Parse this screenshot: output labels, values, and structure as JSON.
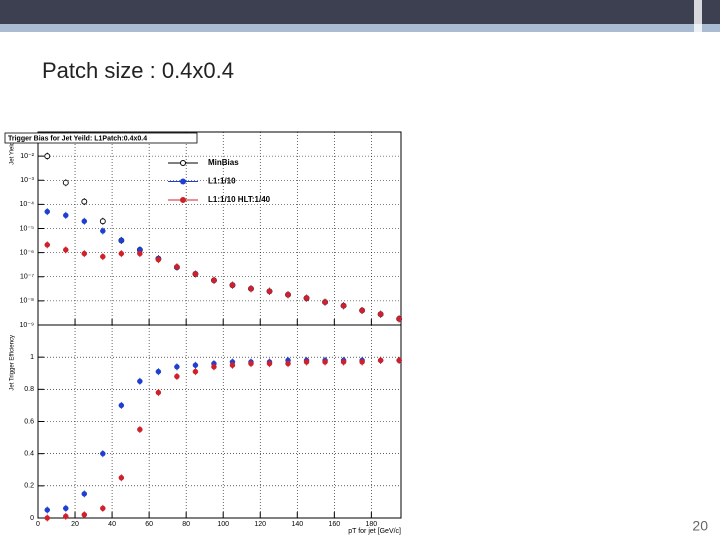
{
  "slide": {
    "title": "Patch size : 0.4x0.4",
    "page_number": 20
  },
  "chart_data": [
    {
      "type": "scatter",
      "title": "Trigger Bias for Jet Yeild: L1Patch:0.4x0.4",
      "y_label": "Jet Yield",
      "x": [
        5,
        15,
        25,
        35,
        45,
        55,
        65,
        75,
        85,
        95,
        105,
        115,
        125,
        135,
        145,
        155,
        165,
        175,
        185,
        195
      ],
      "xlim": [
        0,
        196
      ],
      "ylim": [
        1e-09,
        0.1
      ],
      "log_y": true,
      "grid": true,
      "legend": "top-center",
      "yticks": [
        {
          "value": 0.01,
          "label": "10⁻²"
        },
        {
          "value": 0.001,
          "label": "10⁻³"
        },
        {
          "value": 0.0001,
          "label": "10⁻⁴"
        },
        {
          "value": 1e-05,
          "label": "10⁻⁵"
        },
        {
          "value": 1e-06,
          "label": "10⁻⁶"
        },
        {
          "value": 1e-07,
          "label": "10⁻⁷"
        },
        {
          "value": 1e-08,
          "label": "10⁻⁸"
        },
        {
          "value": 1e-09,
          "label": "10⁻⁹"
        }
      ],
      "series": [
        {
          "name": "MinBias",
          "color": "#000000",
          "marker": "open-circle",
          "values": [
            0.01,
            0.00079,
            0.00013,
            2e-05,
            3.2e-06,
            1.3e-06,
            5.6e-07,
            2.5e-07,
            1.3e-07,
            7.1e-08,
            4.5e-08,
            3.2e-08,
            2.5e-08,
            1.8e-08,
            1.3e-08,
            8.9e-09,
            6.3e-09,
            4e-09,
            2.8e-09,
            1.8e-09
          ]
        },
        {
          "name": "L1:1/10",
          "color": "#1f3fd0",
          "marker": "circle",
          "values": [
            5e-05,
            3.5e-05,
            2e-05,
            7.9e-06,
            3.2e-06,
            1.3e-06,
            5.6e-07,
            2.5e-07,
            1.3e-07,
            7.1e-08,
            4.5e-08,
            3.2e-08,
            2.5e-08,
            1.8e-08,
            1.3e-08,
            8.9e-09,
            6.3e-09,
            4e-09,
            2.8e-09,
            1.8e-09
          ]
        },
        {
          "name": "L1:1/10 HLT:1/40",
          "color": "#d0202a",
          "marker": "circle",
          "values": [
            2.1e-06,
            1.3e-06,
            9.1e-07,
            6.8e-07,
            9.1e-07,
            9.1e-07,
            5.1e-07,
            2.6e-07,
            1.3e-07,
            7.1e-08,
            4.5e-08,
            3.2e-08,
            2.5e-08,
            1.8e-08,
            1.3e-08,
            8.9e-09,
            6.3e-09,
            4e-09,
            2.8e-09,
            1.8e-09
          ]
        }
      ]
    },
    {
      "type": "scatter",
      "y_label": "Jet Trigger Efficiency",
      "x_label": "pT for jet [GeV/c]",
      "x": [
        5,
        15,
        25,
        35,
        45,
        55,
        65,
        75,
        85,
        95,
        105,
        115,
        125,
        135,
        145,
        155,
        165,
        175,
        185,
        195
      ],
      "xlim": [
        0,
        196
      ],
      "ylim": [
        0,
        1.2
      ],
      "grid": true,
      "xticks": [
        0,
        20,
        40,
        60,
        80,
        100,
        120,
        140,
        160,
        180
      ],
      "yticks": [
        0,
        0.2,
        0.4,
        0.6,
        0.8,
        1
      ],
      "series": [
        {
          "color": "#1f3fd0",
          "marker": "circle",
          "values": [
            0.05,
            0.06,
            0.15,
            0.4,
            0.7,
            0.85,
            0.91,
            0.94,
            0.95,
            0.96,
            0.97,
            0.97,
            0.97,
            0.98,
            0.98,
            0.98,
            0.98,
            0.98,
            0.98,
            0.98
          ]
        },
        {
          "color": "#d0202a",
          "marker": "circle",
          "values": [
            0,
            0.01,
            0.02,
            0.06,
            0.25,
            0.55,
            0.78,
            0.88,
            0.91,
            0.94,
            0.95,
            0.96,
            0.96,
            0.96,
            0.97,
            0.97,
            0.97,
            0.97,
            0.98,
            0.98
          ]
        }
      ]
    }
  ]
}
